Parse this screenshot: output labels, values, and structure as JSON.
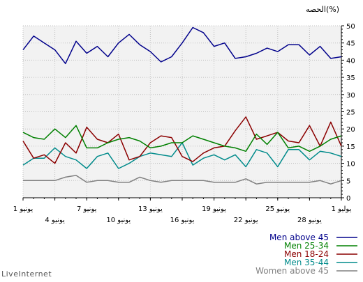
{
  "chart_data": {
    "type": "line",
    "unit_label": "الحصه(%)",
    "ylim": [
      0,
      50
    ],
    "y_ticks": [
      0,
      5,
      10,
      15,
      20,
      25,
      30,
      35,
      40,
      45,
      50
    ],
    "grid": true,
    "legend_position": "bottom-right",
    "x_tick_labels": [
      {
        "label": "1 يوليو",
        "index": 0,
        "row": 1
      },
      {
        "label": "28 يونيو",
        "index": 3,
        "row": 2
      },
      {
        "label": "25 يونيو",
        "index": 6,
        "row": 1
      },
      {
        "label": "22 يونيو",
        "index": 9,
        "row": 2
      },
      {
        "label": "19 يونيو",
        "index": 12,
        "row": 1
      },
      {
        "label": "16 يونيو",
        "index": 15,
        "row": 2
      },
      {
        "label": "13 يونيو",
        "index": 18,
        "row": 1
      },
      {
        "label": "10 يونيو",
        "index": 21,
        "row": 2
      },
      {
        "label": "7 يونيو",
        "index": 24,
        "row": 1
      },
      {
        "label": "4 يونيو",
        "index": 27,
        "row": 2
      },
      {
        "label": "1 يونيو",
        "index": 30,
        "row": 1
      }
    ],
    "series": [
      {
        "name": "Men above 45",
        "color": "#00008b",
        "values": [
          41,
          40.5,
          44,
          41.5,
          44.5,
          44.5,
          42.5,
          43.5,
          42,
          41,
          40.5,
          45,
          44,
          48,
          49.5,
          45,
          41,
          39.5,
          42.5,
          44.5,
          47.5,
          45,
          41,
          44,
          42,
          45.5,
          39,
          43,
          45,
          47,
          43
        ]
      },
      {
        "name": "Men 25-34",
        "color": "#008000",
        "values": [
          18,
          17,
          15,
          13.5,
          15,
          14.5,
          19,
          15.5,
          18.5,
          13.5,
          14.5,
          15,
          16,
          17,
          18,
          16,
          16,
          15,
          14.5,
          16.5,
          17.5,
          17,
          16,
          14.5,
          14.5,
          21,
          17.5,
          20,
          17,
          17.5,
          19
        ]
      },
      {
        "name": "Men 18-24",
        "color": "#8b0000",
        "values": [
          15,
          22,
          15,
          21,
          16,
          16.5,
          19,
          18,
          17,
          23.5,
          19.5,
          15,
          14.5,
          13,
          10.5,
          12,
          17.5,
          18,
          16,
          12,
          11,
          18.5,
          16,
          17,
          20.5,
          13,
          16,
          10,
          12.5,
          11.5,
          16.5
        ]
      },
      {
        "name": "Men 35-44",
        "color": "#008b8b",
        "values": [
          12,
          13,
          13.5,
          11,
          14,
          14,
          9,
          13,
          14,
          9,
          12.5,
          11,
          12.5,
          11.5,
          9.5,
          16,
          12,
          12.5,
          13,
          12,
          10,
          8.5,
          13,
          12,
          8.5,
          11,
          12,
          14.5,
          11.5,
          11.5,
          9.5
        ]
      },
      {
        "name": "Women above 45",
        "color": "#808080",
        "values": [
          5,
          4,
          5,
          4.5,
          4.5,
          4.5,
          4.5,
          4.5,
          4,
          5.5,
          4.5,
          4.5,
          4.5,
          5,
          5,
          5,
          5,
          4.5,
          5,
          6,
          4.5,
          4.5,
          5,
          5,
          4.5,
          6.5,
          6,
          5,
          5,
          5,
          5
        ]
      }
    ]
  },
  "branding": {
    "label": "LiveInternet"
  }
}
